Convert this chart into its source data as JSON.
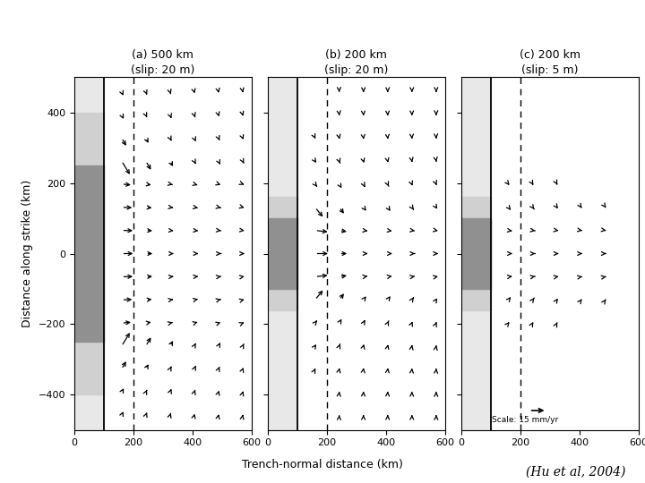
{
  "title_a": "(a) 500 km\n(slip: 20 m)",
  "title_b": "(b) 200 km\n(slip: 20 m)",
  "title_c": "(c) 200 km\n(slip: 5 m)",
  "xlabel": "Trench-normal distance (km)",
  "ylabel": "Distance along strike (km)",
  "citation": "(Hu et al, 2004)",
  "xlim": [
    0,
    600
  ],
  "ylim": [
    -500,
    500
  ],
  "xticks": [
    0,
    200,
    400,
    600
  ],
  "yticks": [
    -400,
    -200,
    0,
    200,
    400
  ],
  "fault_x": 100,
  "dashed_x": 200,
  "scale_label": "Scale: 15 mm/yr",
  "panels": [
    "a",
    "b",
    "c"
  ],
  "half_lengths": [
    250,
    100,
    100
  ],
  "slips": [
    20,
    20,
    5
  ]
}
